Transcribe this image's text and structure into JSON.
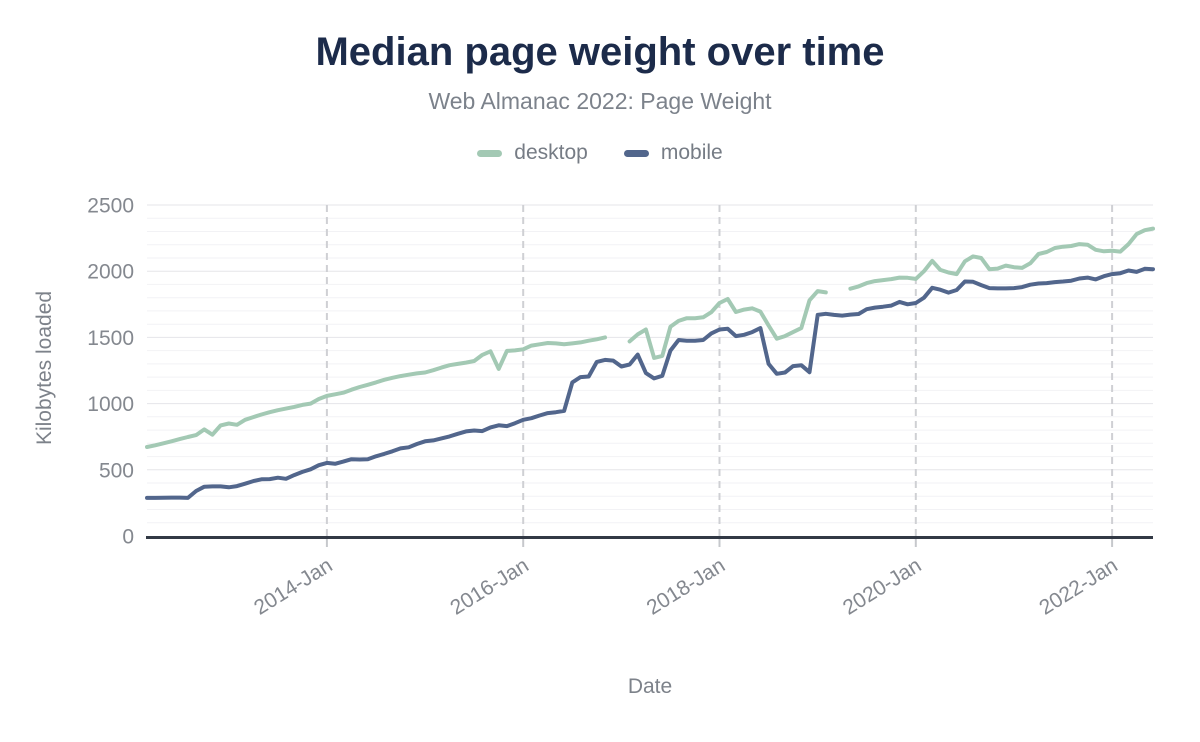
{
  "chart_data": {
    "type": "line",
    "title": "Median page weight over time",
    "subtitle": "Web Almanac 2022: Page Weight",
    "xlabel": "Date",
    "ylabel": "Kilobytes loaded",
    "x_start_month": "2012-03",
    "x_end_month": "2022-06",
    "x_interval": "monthly",
    "ylim": [
      0,
      2500
    ],
    "yticks": [
      0,
      500,
      1000,
      1500,
      2000,
      2500
    ],
    "y_minor_step": 100,
    "xticks": [
      {
        "label": "2014-Jan",
        "month": "2014-01"
      },
      {
        "label": "2016-Jan",
        "month": "2016-01"
      },
      {
        "label": "2018-Jan",
        "month": "2018-01"
      },
      {
        "label": "2020-Jan",
        "month": "2020-01"
      },
      {
        "label": "2022-Jan",
        "month": "2022-01"
      }
    ],
    "x_tick_rotation": -32,
    "grid": {
      "horizontal": "solid-minor-and-major",
      "vertical": "dashed-at-ticks"
    },
    "legend_position": "top",
    "series": [
      {
        "name": "desktop",
        "color": "#a3c9b4",
        "values": [
          672,
          685,
          700,
          715,
          732,
          748,
          762,
          805,
          765,
          835,
          850,
          840,
          878,
          898,
          918,
          935,
          950,
          962,
          975,
          990,
          1000,
          1035,
          1058,
          1070,
          1082,
          1105,
          1125,
          1142,
          1160,
          1180,
          1195,
          1208,
          1218,
          1228,
          1235,
          1252,
          1272,
          1290,
          1300,
          1310,
          1322,
          1368,
          1395,
          1262,
          1398,
          1402,
          1410,
          1438,
          1448,
          1458,
          1455,
          1448,
          1455,
          1462,
          1475,
          1486,
          1500,
          null,
          null,
          1470,
          1523,
          1560,
          1345,
          1360,
          1580,
          1625,
          1645,
          1645,
          1652,
          1690,
          1760,
          1790,
          1692,
          1710,
          1720,
          1695,
          1590,
          1490,
          1510,
          1540,
          1570,
          1780,
          1850,
          1840,
          null,
          null,
          1868,
          1885,
          1910,
          1925,
          1933,
          1940,
          1952,
          1950,
          1942,
          2000,
          2078,
          2010,
          1990,
          1978,
          2075,
          2112,
          2100,
          2015,
          2020,
          2042,
          2030,
          2025,
          2060,
          2130,
          2145,
          2175,
          2185,
          2190,
          2205,
          2200,
          2162,
          2150,
          2155,
          2148,
          2205,
          2280,
          2310,
          2322
        ]
      },
      {
        "name": "mobile",
        "color": "#52668c",
        "values": [
          288,
          288,
          289,
          290,
          290,
          288,
          340,
          372,
          375,
          375,
          368,
          377,
          395,
          415,
          428,
          430,
          440,
          432,
          460,
          484,
          504,
          535,
          552,
          545,
          562,
          580,
          578,
          580,
          602,
          620,
          640,
          662,
          670,
          695,
          715,
          722,
          737,
          752,
          772,
          790,
          797,
          792,
          820,
          836,
          830,
          852,
          878,
          890,
          910,
          928,
          935,
          945,
          1160,
          1200,
          1205,
          1315,
          1330,
          1325,
          1280,
          1295,
          1370,
          1230,
          1190,
          1210,
          1400,
          1480,
          1475,
          1475,
          1480,
          1530,
          1560,
          1565,
          1510,
          1520,
          1540,
          1570,
          1300,
          1225,
          1235,
          1283,
          1290,
          1237,
          1670,
          1678,
          1670,
          1665,
          1672,
          1677,
          1713,
          1725,
          1732,
          1740,
          1768,
          1750,
          1760,
          1800,
          1875,
          1860,
          1838,
          1858,
          1922,
          1920,
          1895,
          1872,
          1870,
          1870,
          1872,
          1880,
          1898,
          1907,
          1910,
          1918,
          1922,
          1928,
          1945,
          1952,
          1938,
          1962,
          1978,
          1985,
          2005,
          1995,
          2018,
          2015
        ]
      }
    ]
  }
}
